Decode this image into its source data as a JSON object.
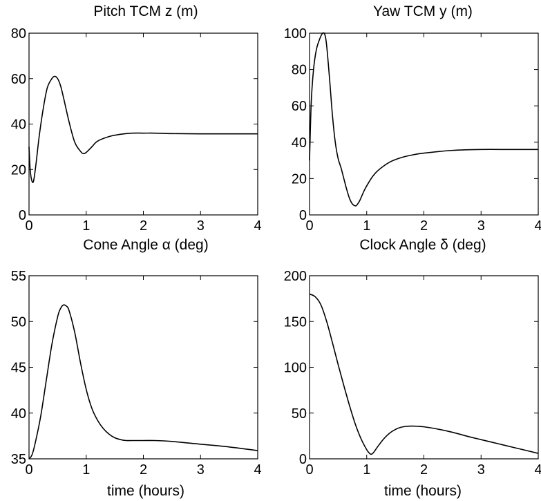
{
  "chart_data": [
    {
      "type": "line",
      "title": "Pitch TCM z (m)",
      "xlabel": "",
      "ylabel": "",
      "xlim": [
        0,
        4
      ],
      "ylim": [
        0,
        80
      ],
      "xticks": [
        0,
        1,
        2,
        3,
        4
      ],
      "yticks": [
        0,
        20,
        40,
        60,
        80
      ],
      "series": [
        {
          "x": [
            0,
            0.02,
            0.05,
            0.08,
            0.12,
            0.18,
            0.25,
            0.32,
            0.4,
            0.45,
            0.5,
            0.55,
            0.6,
            0.7,
            0.8,
            0.9,
            0.95,
            1.0,
            1.1,
            1.2,
            1.4,
            1.6,
            1.8,
            2.0,
            2.2,
            2.5,
            3.0,
            3.5,
            4.0
          ],
          "y": [
            30,
            20,
            15,
            15,
            22,
            35,
            47,
            56,
            60,
            61,
            60,
            57,
            52,
            41,
            32,
            28,
            27,
            27.5,
            30,
            32.5,
            34.5,
            35.5,
            36,
            36,
            36,
            35.8,
            35.7,
            35.7,
            35.7
          ]
        }
      ]
    },
    {
      "type": "line",
      "title": "Yaw  TCM y (m)",
      "xlabel": "",
      "ylabel": "",
      "xlim": [
        0,
        4
      ],
      "ylim": [
        0,
        100
      ],
      "xticks": [
        0,
        1,
        2,
        3,
        4
      ],
      "yticks": [
        0,
        20,
        40,
        60,
        80,
        100
      ],
      "series": [
        {
          "x": [
            0,
            0.03,
            0.07,
            0.12,
            0.18,
            0.23,
            0.27,
            0.3,
            0.35,
            0.4,
            0.45,
            0.5,
            0.55,
            0.6,
            0.65,
            0.7,
            0.75,
            0.8,
            0.83,
            0.88,
            0.95,
            1.0,
            1.1,
            1.2,
            1.4,
            1.6,
            1.8,
            2.0,
            2.5,
            3.0,
            3.5,
            4.0
          ],
          "y": [
            30,
            62,
            80,
            91,
            97,
            100,
            99,
            93,
            75,
            55,
            40,
            31,
            26,
            20,
            14,
            9,
            6,
            5,
            5.5,
            8,
            13,
            16,
            21,
            24.5,
            29,
            31.5,
            33,
            34,
            35.5,
            36,
            36,
            36
          ]
        }
      ]
    },
    {
      "type": "line",
      "title": "Cone Angle α (deg)",
      "xlabel": "time (hours)",
      "ylabel": "",
      "xlim": [
        0,
        4
      ],
      "ylim": [
        35,
        55
      ],
      "xticks": [
        0,
        1,
        2,
        3,
        4
      ],
      "yticks": [
        35,
        40,
        45,
        50,
        55
      ],
      "series": [
        {
          "x": [
            0,
            0.05,
            0.1,
            0.2,
            0.3,
            0.4,
            0.5,
            0.55,
            0.6,
            0.65,
            0.7,
            0.8,
            0.9,
            1.0,
            1.1,
            1.2,
            1.3,
            1.4,
            1.5,
            1.6,
            1.7,
            1.8,
            2.0,
            2.2,
            2.5,
            3.0,
            3.5,
            4.0
          ],
          "y": [
            35,
            35.4,
            36.5,
            39.5,
            43.5,
            47.5,
            50.5,
            51.4,
            51.8,
            51.7,
            51.2,
            48.8,
            45.5,
            42.6,
            40.5,
            39.2,
            38.3,
            37.7,
            37.3,
            37.1,
            37.0,
            37.0,
            37.0,
            37.0,
            36.9,
            36.6,
            36.3,
            35.9
          ]
        }
      ]
    },
    {
      "type": "line",
      "title": "Clock Angle δ (deg)",
      "xlabel": "time (hours)",
      "ylabel": "",
      "xlim": [
        0,
        4
      ],
      "ylim": [
        0,
        200
      ],
      "xticks": [
        0,
        1,
        2,
        3,
        4
      ],
      "yticks": [
        0,
        50,
        100,
        150,
        200
      ],
      "series": [
        {
          "x": [
            0,
            0.1,
            0.2,
            0.3,
            0.4,
            0.5,
            0.6,
            0.7,
            0.8,
            0.9,
            1.0,
            1.05,
            1.08,
            1.12,
            1.2,
            1.3,
            1.4,
            1.5,
            1.6,
            1.7,
            1.8,
            1.9,
            2.0,
            2.2,
            2.5,
            2.8,
            3.0,
            3.3,
            3.6,
            4.0
          ],
          "y": [
            180,
            177,
            168,
            150,
            127,
            103,
            80,
            58,
            38,
            22,
            10,
            6,
            5,
            7,
            14,
            22,
            28,
            32,
            34.5,
            35.5,
            35.8,
            35.5,
            35,
            33,
            29,
            24,
            21,
            16.5,
            12,
            6
          ]
        }
      ]
    }
  ]
}
